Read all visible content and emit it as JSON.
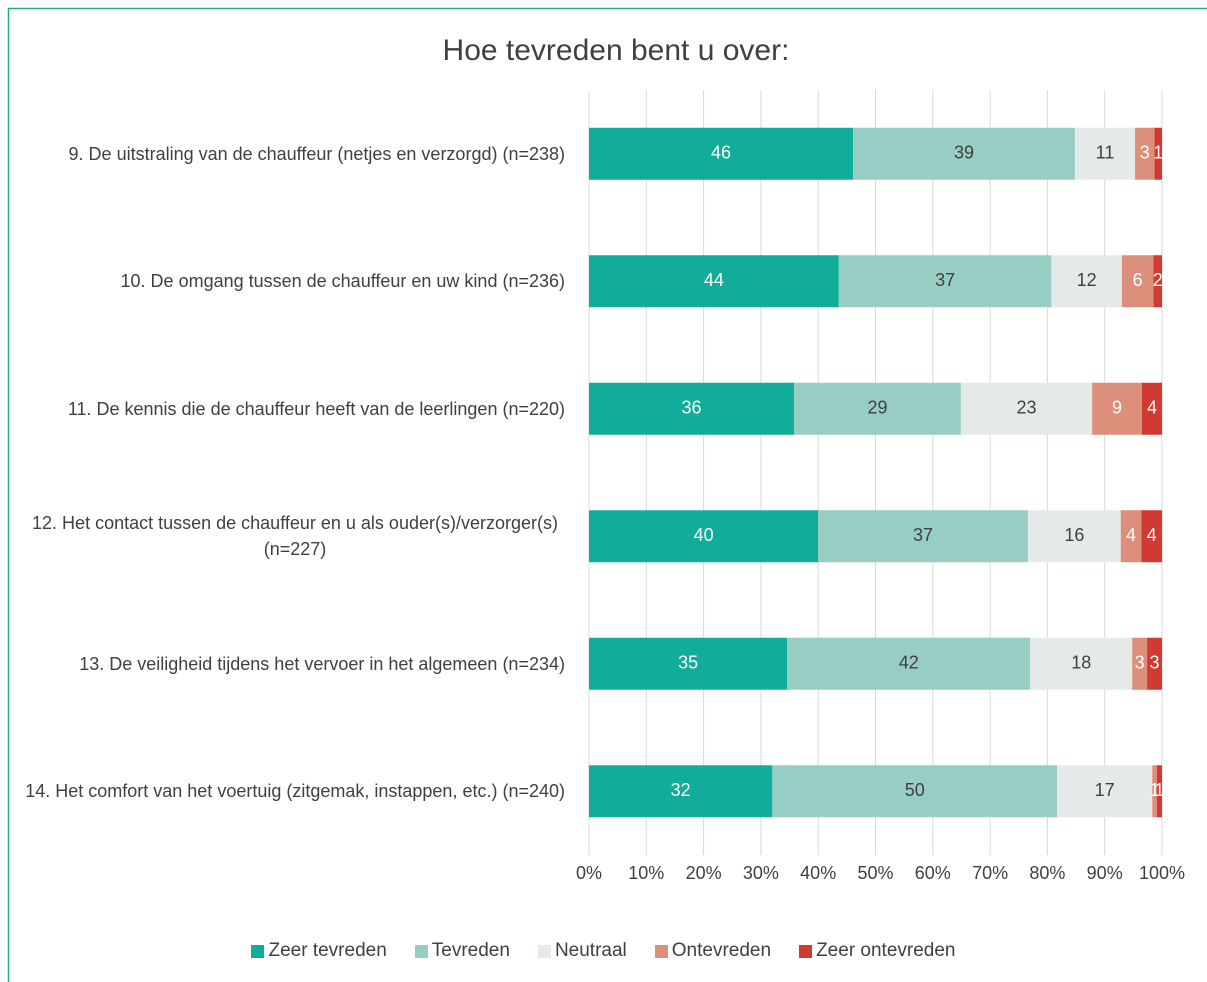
{
  "chart_data": {
    "type": "stacked_barh",
    "title": "Hoe tevreden bent u over:",
    "categories": [
      "9. De uitstraling van de chauffeur (netjes en verzorgd) (n=238)",
      "10. De omgang tussen de chauffeur en uw kind (n=236)",
      "11. De kennis die de chauffeur heeft van de leerlingen (n=220)",
      "12. Het contact tussen de chauffeur en u als ouder(s)/verzorger(s) (n=227)",
      "13. De veiligheid tijdens het vervoer in het algemeen (n=234)",
      "14. Het comfort van het voertuig (zitgemak, instappen, etc.) (n=240)"
    ],
    "series": [
      {
        "name": "Zeer tevreden",
        "color": "#12ad9a",
        "label_color": "#ffffff",
        "values": [
          46.1,
          43.6,
          35.8,
          40.0,
          34.6,
          32.0
        ],
        "value_labels": [
          "46",
          "44",
          "36",
          "40",
          "35",
          "32"
        ]
      },
      {
        "name": "Tevreden",
        "color": "#97cdc3",
        "label_color": "#404040",
        "values": [
          38.7,
          37.1,
          29.1,
          36.6,
          42.4,
          49.7
        ],
        "value_labels": [
          "39",
          "37",
          "29",
          "37",
          "42",
          "50"
        ]
      },
      {
        "name": "Neutraal",
        "color": "#e6e9ea",
        "label_color": "#404040",
        "values": [
          10.5,
          12.3,
          22.9,
          16.2,
          17.8,
          16.6
        ],
        "value_labels": [
          "11",
          "12",
          "23",
          "16",
          "18",
          "17"
        ]
      },
      {
        "name": "Ontevreden",
        "color": "#dc8f7a",
        "label_color": "#ffffff",
        "values": [
          3.4,
          5.5,
          8.7,
          3.6,
          2.6,
          0.8
        ],
        "value_labels": [
          "3",
          "6",
          "9",
          "4",
          "3",
          "1"
        ]
      },
      {
        "name": "Zeer ontevreden",
        "color": "#d03a32",
        "label_color": "#ffffff",
        "values": [
          1.3,
          1.5,
          3.5,
          3.6,
          2.6,
          0.9
        ],
        "value_labels": [
          "1",
          "2",
          "4",
          "4",
          "3",
          "1"
        ]
      }
    ],
    "xlim": [
      0,
      100
    ],
    "xticks": [
      {
        "value": 0,
        "label": "0%"
      },
      {
        "value": 10,
        "label": "10%"
      },
      {
        "value": 20,
        "label": "20%"
      },
      {
        "value": 30,
        "label": "30%"
      },
      {
        "value": 40,
        "label": "40%"
      },
      {
        "value": 50,
        "label": "50%"
      },
      {
        "value": 60,
        "label": "60%"
      },
      {
        "value": 70,
        "label": "70%"
      },
      {
        "value": 80,
        "label": "80%"
      },
      {
        "value": 90,
        "label": "90%"
      },
      {
        "value": 100,
        "label": "100%"
      }
    ],
    "grid": true,
    "legend": "bottom"
  }
}
